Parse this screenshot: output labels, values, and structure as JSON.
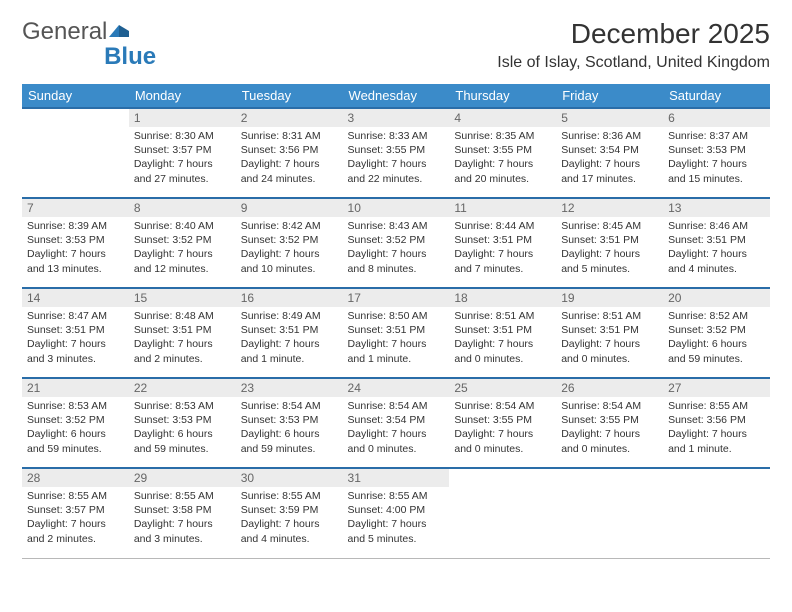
{
  "brand": {
    "name1": "General",
    "name2": "Blue"
  },
  "title": "December 2025",
  "location": "Isle of Islay, Scotland, United Kingdom",
  "colors": {
    "header_bg": "#3b8bc9",
    "header_text": "#ffffff",
    "row_border_top": "#2a6da8",
    "row_border_bottom": "#b8b8b8",
    "daynum_bg": "#ececec",
    "logo_gray": "#555555",
    "logo_blue": "#2a7ab8",
    "text": "#333333",
    "background": "#ffffff"
  },
  "typography": {
    "month_title_size": 28,
    "location_size": 16,
    "header_cell_size": 13,
    "daynum_size": 12,
    "daytext_size": 10.5
  },
  "weekdays": [
    "Sunday",
    "Monday",
    "Tuesday",
    "Wednesday",
    "Thursday",
    "Friday",
    "Saturday"
  ],
  "weeks": [
    [
      {
        "day": "",
        "sunrise": "",
        "sunset": "",
        "daylight": ""
      },
      {
        "day": "1",
        "sunrise": "Sunrise: 8:30 AM",
        "sunset": "Sunset: 3:57 PM",
        "daylight": "Daylight: 7 hours and 27 minutes."
      },
      {
        "day": "2",
        "sunrise": "Sunrise: 8:31 AM",
        "sunset": "Sunset: 3:56 PM",
        "daylight": "Daylight: 7 hours and 24 minutes."
      },
      {
        "day": "3",
        "sunrise": "Sunrise: 8:33 AM",
        "sunset": "Sunset: 3:55 PM",
        "daylight": "Daylight: 7 hours and 22 minutes."
      },
      {
        "day": "4",
        "sunrise": "Sunrise: 8:35 AM",
        "sunset": "Sunset: 3:55 PM",
        "daylight": "Daylight: 7 hours and 20 minutes."
      },
      {
        "day": "5",
        "sunrise": "Sunrise: 8:36 AM",
        "sunset": "Sunset: 3:54 PM",
        "daylight": "Daylight: 7 hours and 17 minutes."
      },
      {
        "day": "6",
        "sunrise": "Sunrise: 8:37 AM",
        "sunset": "Sunset: 3:53 PM",
        "daylight": "Daylight: 7 hours and 15 minutes."
      }
    ],
    [
      {
        "day": "7",
        "sunrise": "Sunrise: 8:39 AM",
        "sunset": "Sunset: 3:53 PM",
        "daylight": "Daylight: 7 hours and 13 minutes."
      },
      {
        "day": "8",
        "sunrise": "Sunrise: 8:40 AM",
        "sunset": "Sunset: 3:52 PM",
        "daylight": "Daylight: 7 hours and 12 minutes."
      },
      {
        "day": "9",
        "sunrise": "Sunrise: 8:42 AM",
        "sunset": "Sunset: 3:52 PM",
        "daylight": "Daylight: 7 hours and 10 minutes."
      },
      {
        "day": "10",
        "sunrise": "Sunrise: 8:43 AM",
        "sunset": "Sunset: 3:52 PM",
        "daylight": "Daylight: 7 hours and 8 minutes."
      },
      {
        "day": "11",
        "sunrise": "Sunrise: 8:44 AM",
        "sunset": "Sunset: 3:51 PM",
        "daylight": "Daylight: 7 hours and 7 minutes."
      },
      {
        "day": "12",
        "sunrise": "Sunrise: 8:45 AM",
        "sunset": "Sunset: 3:51 PM",
        "daylight": "Daylight: 7 hours and 5 minutes."
      },
      {
        "day": "13",
        "sunrise": "Sunrise: 8:46 AM",
        "sunset": "Sunset: 3:51 PM",
        "daylight": "Daylight: 7 hours and 4 minutes."
      }
    ],
    [
      {
        "day": "14",
        "sunrise": "Sunrise: 8:47 AM",
        "sunset": "Sunset: 3:51 PM",
        "daylight": "Daylight: 7 hours and 3 minutes."
      },
      {
        "day": "15",
        "sunrise": "Sunrise: 8:48 AM",
        "sunset": "Sunset: 3:51 PM",
        "daylight": "Daylight: 7 hours and 2 minutes."
      },
      {
        "day": "16",
        "sunrise": "Sunrise: 8:49 AM",
        "sunset": "Sunset: 3:51 PM",
        "daylight": "Daylight: 7 hours and 1 minute."
      },
      {
        "day": "17",
        "sunrise": "Sunrise: 8:50 AM",
        "sunset": "Sunset: 3:51 PM",
        "daylight": "Daylight: 7 hours and 1 minute."
      },
      {
        "day": "18",
        "sunrise": "Sunrise: 8:51 AM",
        "sunset": "Sunset: 3:51 PM",
        "daylight": "Daylight: 7 hours and 0 minutes."
      },
      {
        "day": "19",
        "sunrise": "Sunrise: 8:51 AM",
        "sunset": "Sunset: 3:51 PM",
        "daylight": "Daylight: 7 hours and 0 minutes."
      },
      {
        "day": "20",
        "sunrise": "Sunrise: 8:52 AM",
        "sunset": "Sunset: 3:52 PM",
        "daylight": "Daylight: 6 hours and 59 minutes."
      }
    ],
    [
      {
        "day": "21",
        "sunrise": "Sunrise: 8:53 AM",
        "sunset": "Sunset: 3:52 PM",
        "daylight": "Daylight: 6 hours and 59 minutes."
      },
      {
        "day": "22",
        "sunrise": "Sunrise: 8:53 AM",
        "sunset": "Sunset: 3:53 PM",
        "daylight": "Daylight: 6 hours and 59 minutes."
      },
      {
        "day": "23",
        "sunrise": "Sunrise: 8:54 AM",
        "sunset": "Sunset: 3:53 PM",
        "daylight": "Daylight: 6 hours and 59 minutes."
      },
      {
        "day": "24",
        "sunrise": "Sunrise: 8:54 AM",
        "sunset": "Sunset: 3:54 PM",
        "daylight": "Daylight: 7 hours and 0 minutes."
      },
      {
        "day": "25",
        "sunrise": "Sunrise: 8:54 AM",
        "sunset": "Sunset: 3:55 PM",
        "daylight": "Daylight: 7 hours and 0 minutes."
      },
      {
        "day": "26",
        "sunrise": "Sunrise: 8:54 AM",
        "sunset": "Sunset: 3:55 PM",
        "daylight": "Daylight: 7 hours and 0 minutes."
      },
      {
        "day": "27",
        "sunrise": "Sunrise: 8:55 AM",
        "sunset": "Sunset: 3:56 PM",
        "daylight": "Daylight: 7 hours and 1 minute."
      }
    ],
    [
      {
        "day": "28",
        "sunrise": "Sunrise: 8:55 AM",
        "sunset": "Sunset: 3:57 PM",
        "daylight": "Daylight: 7 hours and 2 minutes."
      },
      {
        "day": "29",
        "sunrise": "Sunrise: 8:55 AM",
        "sunset": "Sunset: 3:58 PM",
        "daylight": "Daylight: 7 hours and 3 minutes."
      },
      {
        "day": "30",
        "sunrise": "Sunrise: 8:55 AM",
        "sunset": "Sunset: 3:59 PM",
        "daylight": "Daylight: 7 hours and 4 minutes."
      },
      {
        "day": "31",
        "sunrise": "Sunrise: 8:55 AM",
        "sunset": "Sunset: 4:00 PM",
        "daylight": "Daylight: 7 hours and 5 minutes."
      },
      {
        "day": "",
        "sunrise": "",
        "sunset": "",
        "daylight": ""
      },
      {
        "day": "",
        "sunrise": "",
        "sunset": "",
        "daylight": ""
      },
      {
        "day": "",
        "sunrise": "",
        "sunset": "",
        "daylight": ""
      }
    ]
  ]
}
